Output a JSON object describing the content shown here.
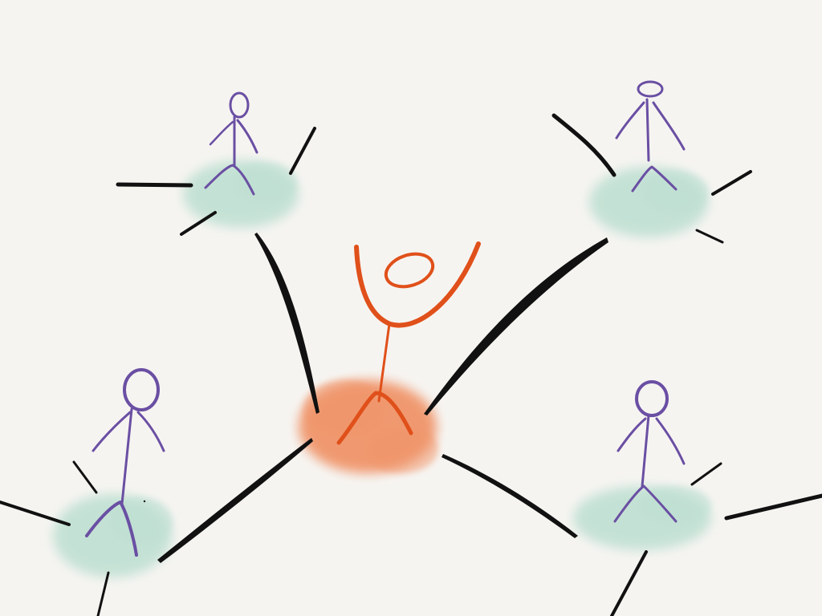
{
  "diagram": {
    "type": "network-sketch",
    "colors": {
      "background": "#f6f4f1",
      "link": "#111111",
      "center_person": "#e0501a",
      "center_blob": "#f0956a",
      "peer_person": "#6a4fa3",
      "peer_blob": "#bfe0d2"
    },
    "nodes": [
      {
        "id": "center",
        "role": "central-person",
        "pose": "arms-raised"
      },
      {
        "id": "peer-top-left",
        "role": "peer-person",
        "pose": "standing"
      },
      {
        "id": "peer-top-right",
        "role": "peer-person",
        "pose": "standing"
      },
      {
        "id": "peer-bottom-left",
        "role": "peer-person",
        "pose": "standing"
      },
      {
        "id": "peer-bottom-right",
        "role": "peer-person",
        "pose": "standing"
      }
    ],
    "links": [
      {
        "from": "center",
        "to": "peer-top-left"
      },
      {
        "from": "center",
        "to": "peer-top-right"
      },
      {
        "from": "center",
        "to": "peer-bottom-left"
      },
      {
        "from": "center",
        "to": "peer-bottom-right"
      }
    ]
  }
}
